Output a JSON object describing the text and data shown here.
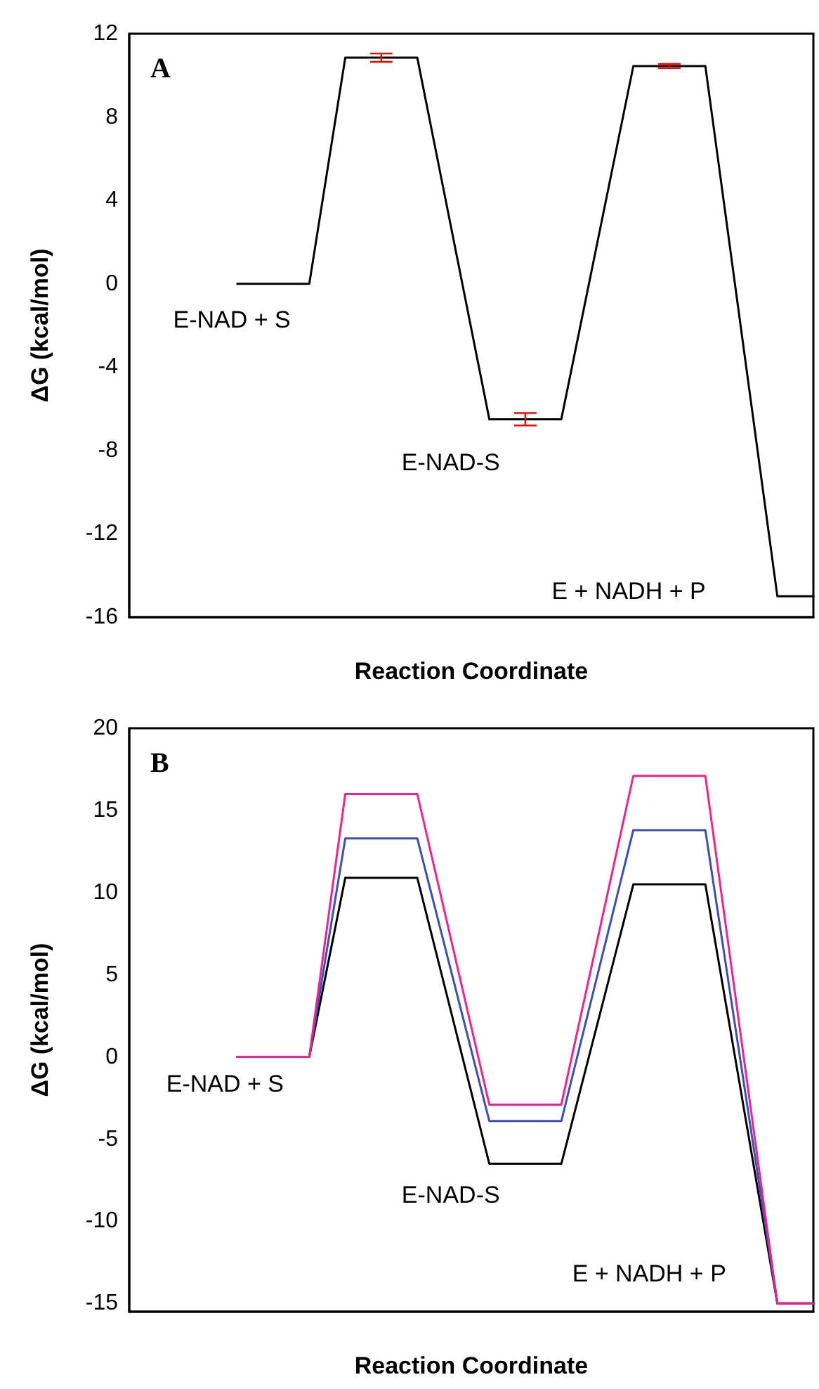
{
  "chart_data": [
    {
      "type": "line",
      "title": "A",
      "xlabel": "Reaction Coordinate",
      "ylabel": "ΔG (kcal/mol)",
      "categories": [
        null,
        null,
        null,
        null,
        null,
        null,
        null,
        null,
        null,
        null,
        null,
        null,
        null,
        null,
        null,
        null,
        null,
        null,
        null,
        null
      ],
      "ylim": [
        -16,
        12
      ],
      "yticks": [
        -16,
        -12,
        -8,
        -4,
        0,
        4,
        8,
        12
      ],
      "tick_labels": "y",
      "grid": false,
      "marker": "none",
      "line_style": "solid",
      "series": [
        {
          "color": "#000000",
          "values": [
            null,
            null,
            null,
            0,
            null,
            0,
            10.85,
            10.85,
            10.85,
            null,
            -6.5,
            -6.5,
            -6.5,
            null,
            10.45,
            10.45,
            10.45,
            null,
            -15,
            -15
          ],
          "errors": [
            null,
            null,
            null,
            null,
            null,
            null,
            null,
            0.2,
            null,
            null,
            null,
            0.3,
            null,
            null,
            null,
            0.1,
            null,
            null,
            null,
            null
          ]
        }
      ],
      "annotations": [
        "E-NAD + S",
        "E-NAD-S",
        "E + NADH + P"
      ]
    },
    {
      "type": "line",
      "title": "B",
      "xlabel": "Reaction Coordinate",
      "ylabel": "ΔG (kcal/mol)",
      "categories": [
        null,
        null,
        null,
        null,
        null,
        null,
        null,
        null,
        null,
        null,
        null,
        null,
        null,
        null,
        null,
        null,
        null,
        null,
        null,
        null
      ],
      "ylim": [
        -15.5,
        20
      ],
      "yticks": [
        -15,
        -10,
        -5,
        0,
        5,
        10,
        15,
        20
      ],
      "tick_labels": "y",
      "grid": false,
      "marker": "none",
      "line_style": "solid",
      "series": [
        {
          "color": "#000000",
          "values": [
            null,
            null,
            null,
            0,
            null,
            0,
            10.9,
            null,
            10.9,
            null,
            -6.5,
            null,
            -6.5,
            null,
            10.5,
            null,
            10.5,
            null,
            -15,
            -15
          ]
        },
        {
          "color": "#3b4fb8",
          "values": [
            null,
            null,
            null,
            0,
            null,
            0,
            13.3,
            null,
            13.3,
            null,
            -3.9,
            null,
            -3.9,
            null,
            13.8,
            null,
            13.8,
            null,
            -15,
            -15
          ]
        },
        {
          "color": "#f0238c",
          "values": [
            null,
            null,
            null,
            0,
            null,
            0,
            16,
            null,
            16,
            null,
            -2.9,
            null,
            -2.9,
            null,
            17.1,
            null,
            17.1,
            null,
            -15,
            -15
          ]
        }
      ],
      "annotations": [
        "E-NAD + S",
        "E-NAD-S",
        "E + NADH + P"
      ]
    }
  ]
}
